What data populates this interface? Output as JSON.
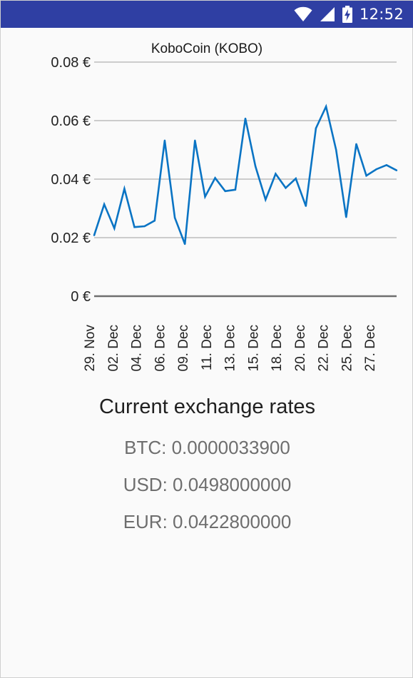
{
  "status_bar": {
    "time": "12:52",
    "icons": [
      "wifi-icon",
      "cell-signal-icon",
      "battery-charging-icon"
    ],
    "background": "#2f3fa3"
  },
  "chart_data": {
    "type": "line",
    "title": "KoboCoin (KOBO)",
    "xlabel": "",
    "ylabel": "",
    "y_unit": "€",
    "ylim": [
      0,
      0.08
    ],
    "y_ticks": [
      "0 €",
      "0.02 €",
      "0.04 €",
      "0.06 €",
      "0.08 €"
    ],
    "y_tick_values": [
      0,
      0.02,
      0.04,
      0.06,
      0.08
    ],
    "grid": true,
    "line_color": "#0a74c4",
    "x_tick_labels": [
      "29. Nov",
      "02. Dec",
      "04. Dec",
      "06. Dec",
      "09. Dec",
      "11. Dec",
      "13. Dec",
      "15. Dec",
      "18. Dec",
      "20. Dec",
      "22. Dec",
      "25. Dec",
      "27. Dec"
    ],
    "values": [
      0.0208,
      0.0314,
      0.0232,
      0.0367,
      0.0236,
      0.0239,
      0.0258,
      0.0532,
      0.0268,
      0.0178,
      0.0532,
      0.034,
      0.0404,
      0.0359,
      0.0364,
      0.0607,
      0.0444,
      0.033,
      0.0418,
      0.037,
      0.0402,
      0.0308,
      0.0574,
      0.0648,
      0.05,
      0.027,
      0.052,
      0.0412,
      0.0434,
      0.0448,
      0.043
    ]
  },
  "rates": {
    "title": "Current exchange rates",
    "btc": "BTC: 0.0000033900",
    "usd": "USD: 0.0498000000",
    "eur": "EUR: 0.0422800000"
  }
}
